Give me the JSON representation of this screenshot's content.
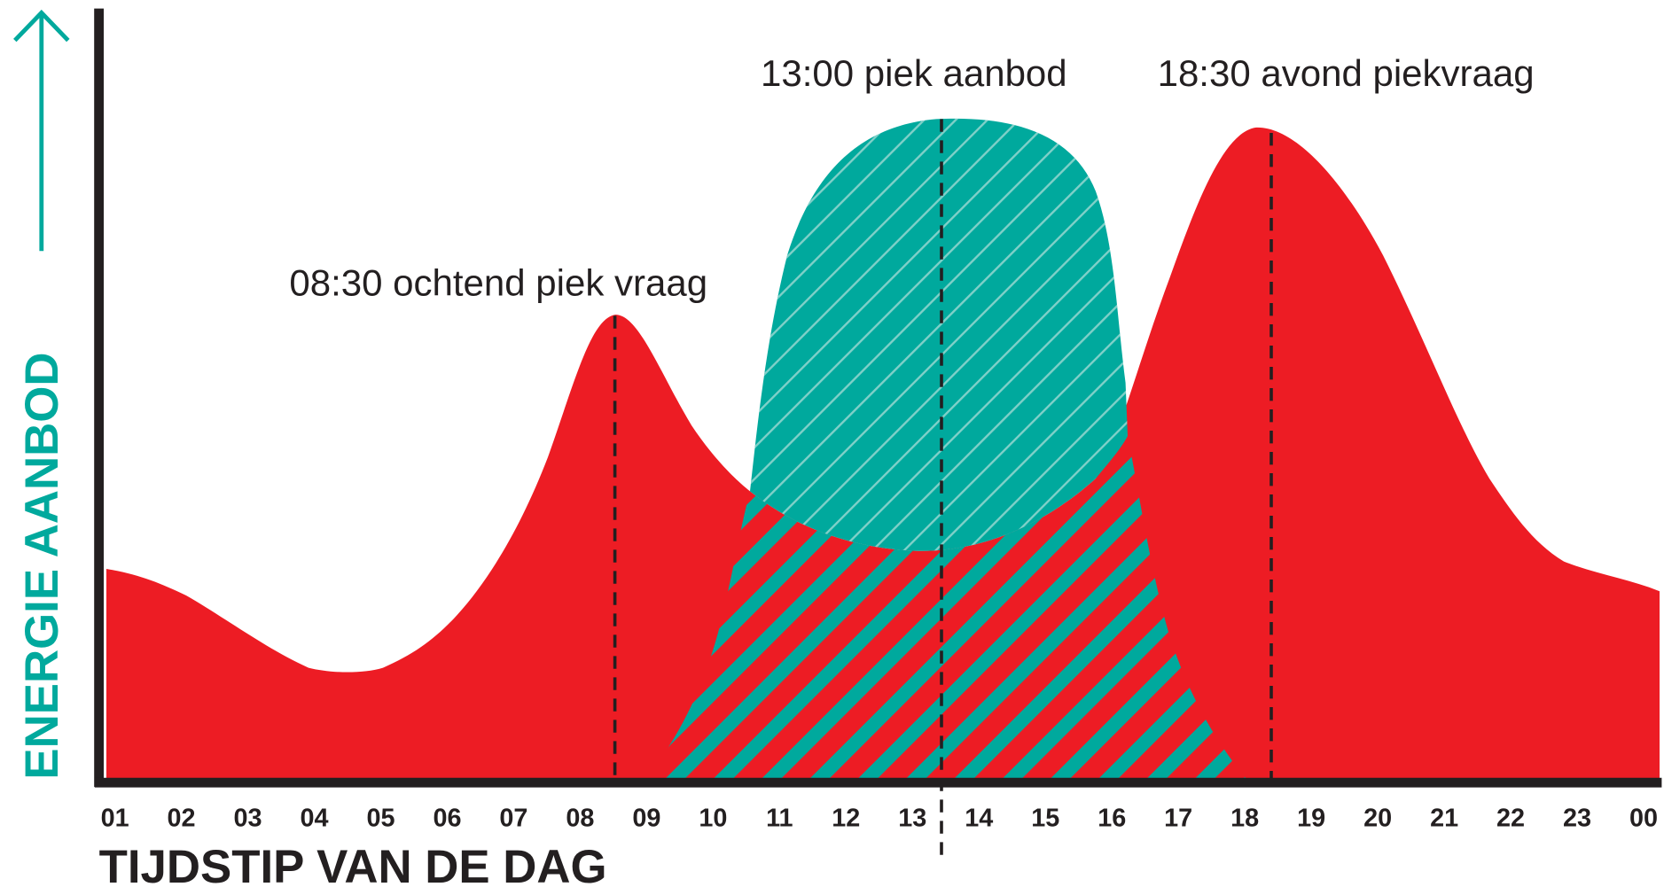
{
  "y_axis_label": "ENERGIE AANBOD",
  "x_axis_label": "TIJDSTIP VAN DE DAG",
  "annotations": [
    "08:30 ochtend piek vraag",
    "13:00 piek aanbod",
    "18:30 avond piekvraag"
  ],
  "hours": [
    "01",
    "02",
    "03",
    "04",
    "05",
    "06",
    "07",
    "08",
    "09",
    "10",
    "11",
    "12",
    "13",
    "14",
    "15",
    "16",
    "17",
    "18",
    "19",
    "20",
    "21",
    "22",
    "23",
    "00"
  ]
}
